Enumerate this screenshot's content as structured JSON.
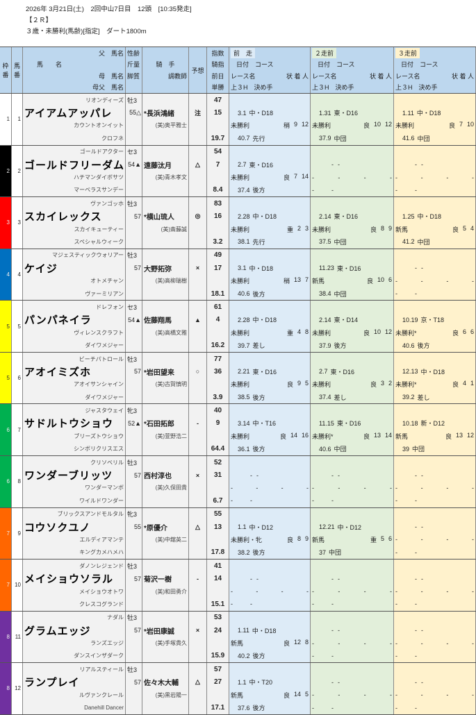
{
  "header": {
    "line1": "2026年 3月21日(土)　2回中山7日目　12頭　[10:35発走]",
    "race_no": "【２Ｒ】",
    "conditions": "３歳・未勝利(馬齢)[指定]　ダート1800m"
  },
  "columns": {
    "waku": [
      "枠",
      "番"
    ],
    "umaban": [
      "馬",
      "番"
    ],
    "sire": "父　馬名",
    "name": "馬　　名",
    "dam": "母　馬名",
    "damsire": "母父　馬名",
    "sexage": "性齢",
    "weight": "斤量",
    "style": "脚質",
    "jockey": "騎　手",
    "trainer": "調教師",
    "mark": "予想",
    "idx": "指数",
    "jidx": "騎指",
    "prev": "前日",
    "odds": "単勝",
    "races": [
      "前　走",
      "２走前",
      "３走前"
    ],
    "date_course": "日付　コース",
    "race_name": "レース名",
    "cond_fin_pop": "状 着 人",
    "l3f_style": "上３H　決め手"
  },
  "empty_mark": "-",
  "frame_colors": {
    "1": "#ffffff",
    "2": "#000000",
    "3": "#ff0000",
    "4": "#0070c0",
    "5": "#ffff00",
    "6": "#00b050",
    "7": "#ff6600",
    "8": "#7030a0"
  },
  "horses": [
    {
      "frame": "1",
      "num": "1",
      "sire": "リオンディーズ",
      "sexage": "牡3",
      "name": "アイアムアッパレ",
      "weight": "55△",
      "jockey": "*長浜鴻緒",
      "mark": "注",
      "idx": "47",
      "jidx": "15",
      "prev": "",
      "odds": "19.7",
      "dam": "カウントオンイット",
      "trainer": "(美)奥平雅士",
      "damsire": "クロフネ",
      "races": [
        {
          "date": "3.1",
          "course": "中・D18",
          "race": "未勝利",
          "cond": "稍",
          "fin": "9",
          "pop": "12",
          "l3f": "40.7",
          "style": "先行"
        },
        {
          "date": "1.31",
          "course": "東・D16",
          "race": "未勝利",
          "cond": "良",
          "fin": "10",
          "pop": "12",
          "l3f": "37.9",
          "style": "中団"
        },
        {
          "date": "1.11",
          "course": "中・D18",
          "race": "未勝利",
          "cond": "良",
          "fin": "7",
          "pop": "10",
          "l3f": "41.6",
          "style": "中団"
        }
      ]
    },
    {
      "frame": "2",
      "num": "2",
      "sire": "ゴールドアクター",
      "sexage": "セ3",
      "name": "ゴールドフリーダム",
      "weight": "54▲",
      "jockey": "遠藤汰月",
      "mark": "△",
      "idx": "54",
      "jidx": "7",
      "prev": "",
      "odds": "8.4",
      "dam": "ハチマンダイボサツ",
      "trainer": "(美)青木孝文",
      "damsire": "マーベラスサンデー",
      "races": [
        {
          "date": "2.7",
          "course": "東・D16",
          "race": "未勝利",
          "cond": "良",
          "fin": "7",
          "pop": "14",
          "l3f": "37.4",
          "style": "後方"
        },
        null,
        null
      ]
    },
    {
      "frame": "3",
      "num": "3",
      "sire": "ヴァンゴッホ",
      "sexage": "牡3",
      "name": "スカイレックス",
      "weight": "57",
      "jockey": "*横山琉人",
      "mark": "◎",
      "idx": "83",
      "jidx": "16",
      "prev": "",
      "odds": "3.2",
      "dam": "スカイキューティー",
      "trainer": "(美)斎藤誠",
      "damsire": "スペシャルウィーク",
      "races": [
        {
          "date": "2.28",
          "course": "中・D18",
          "race": "未勝利",
          "cond": "重",
          "fin": "2",
          "pop": "3",
          "l3f": "38.1",
          "style": "先行"
        },
        {
          "date": "2.14",
          "course": "東・D16",
          "race": "未勝利",
          "cond": "良",
          "fin": "8",
          "pop": "9",
          "l3f": "37.5",
          "style": "中団"
        },
        {
          "date": "1.25",
          "course": "中・D18",
          "race": "新馬",
          "cond": "良",
          "fin": "5",
          "pop": "4",
          "l3f": "41.2",
          "style": "中団"
        }
      ]
    },
    {
      "frame": "4",
      "num": "4",
      "sire": "マジェスティックウォリアー",
      "sexage": "牡3",
      "name": "ケイジ",
      "weight": "57",
      "jockey": "大野拓弥",
      "mark": "×",
      "idx": "49",
      "jidx": "17",
      "prev": "",
      "odds": "18.1",
      "dam": "オトメチャン",
      "trainer": "(美)高柳瑞樹",
      "damsire": "ヴァーミリアン",
      "races": [
        {
          "date": "3.1",
          "course": "中・D18",
          "race": "未勝利",
          "cond": "稍",
          "fin": "13",
          "pop": "7",
          "l3f": "40.6",
          "style": "後方"
        },
        {
          "date": "11.23",
          "course": "東・D16",
          "race": "新馬",
          "cond": "良",
          "fin": "10",
          "pop": "6",
          "l3f": "38.4",
          "style": "中団"
        },
        null
      ]
    },
    {
      "frame": "5",
      "num": "5",
      "sire": "ドレフォン",
      "sexage": "セ3",
      "name": "パンパネイラ",
      "weight": "54▲",
      "jockey": "佐藤翔馬",
      "mark": "▲",
      "idx": "61",
      "jidx": "4",
      "prev": "",
      "odds": "16.2",
      "dam": "ヴィレンスクラフト",
      "trainer": "(美)高橋文雅",
      "damsire": "ダイワメジャー",
      "races": [
        {
          "date": "2.28",
          "course": "中・D18",
          "race": "未勝利",
          "cond": "重",
          "fin": "4",
          "pop": "8",
          "l3f": "39.7",
          "style": "差し"
        },
        {
          "date": "2.14",
          "course": "東・D14",
          "race": "未勝利",
          "cond": "良",
          "fin": "10",
          "pop": "12",
          "l3f": "37.9",
          "style": "後方"
        },
        {
          "date": "10.19",
          "course": "京・T18",
          "race": "未勝利*",
          "cond": "良",
          "fin": "6",
          "pop": "6",
          "l3f": "40.6",
          "style": "後方"
        }
      ]
    },
    {
      "frame": "5",
      "num": "6",
      "sire": "ビーチパトロール",
      "sexage": "牡3",
      "name": "アオイミズホ",
      "weight": "57",
      "jockey": "*岩田望来",
      "mark": "○",
      "idx": "77",
      "jidx": "36",
      "prev": "",
      "odds": "3.9",
      "dam": "アオイサンシャイン",
      "trainer": "(美)古賀慎明",
      "damsire": "ダイワメジャー",
      "races": [
        {
          "date": "2.21",
          "course": "東・D16",
          "race": "未勝利",
          "cond": "良",
          "fin": "9",
          "pop": "5",
          "l3f": "38.5",
          "style": "後方"
        },
        {
          "date": "2.7",
          "course": "東・D16",
          "race": "未勝利",
          "cond": "良",
          "fin": "3",
          "pop": "2",
          "l3f": "37.4",
          "style": "差し"
        },
        {
          "date": "12.13",
          "course": "中・D18",
          "race": "未勝利*",
          "cond": "良",
          "fin": "4",
          "pop": "1",
          "l3f": "39.2",
          "style": "差し"
        }
      ]
    },
    {
      "frame": "6",
      "num": "7",
      "sire": "ジャスタウェイ",
      "sexage": "牝3",
      "name": "サドルトウショウ",
      "weight": "52▲",
      "jockey": "*石田拓郎",
      "mark": "-",
      "idx": "40",
      "jidx": "9",
      "prev": "",
      "odds": "64.4",
      "dam": "ブリーズトウショウ",
      "trainer": "(美)萱野浩二",
      "damsire": "シンボリクリスエス",
      "races": [
        {
          "date": "3.14",
          "course": "中・T16",
          "race": "未勝利",
          "cond": "良",
          "fin": "14",
          "pop": "16",
          "l3f": "36.1",
          "style": "後方"
        },
        {
          "date": "11.15",
          "course": "東・D16",
          "race": "未勝利*",
          "cond": "良",
          "fin": "13",
          "pop": "14",
          "l3f": "40.6",
          "style": "中団"
        },
        {
          "date": "10.18",
          "course": "新・D12",
          "race": "新馬",
          "cond": "良",
          "fin": "13",
          "pop": "12",
          "l3f": "39",
          "style": "中団"
        }
      ]
    },
    {
      "frame": "6",
      "num": "8",
      "sire": "クリソベリル",
      "sexage": "牡3",
      "name": "ワンダーブリッツ",
      "weight": "57",
      "jockey": "西村淳也",
      "mark": "×",
      "idx": "52",
      "jidx": "31",
      "prev": "",
      "odds": "6.7",
      "dam": "ワンダーマンボ",
      "trainer": "(美)久保田貴",
      "damsire": "ワイルドワンダー",
      "races": [
        null,
        null,
        null
      ]
    },
    {
      "frame": "7",
      "num": "9",
      "sire": "ブリックスアンドモルタル",
      "sexage": "牝3",
      "name": "コウソクユノ",
      "weight": "55",
      "jockey": "*原優介",
      "mark": "△",
      "idx": "55",
      "jidx": "13",
      "prev": "",
      "odds": "17.8",
      "dam": "エルディアマンテ",
      "trainer": "(美)中舘英二",
      "damsire": "キングカメハメハ",
      "races": [
        {
          "date": "1.1",
          "course": "中・D12",
          "race": "未勝利・牝",
          "cond": "良",
          "fin": "8",
          "pop": "9",
          "l3f": "38.2",
          "style": "後方"
        },
        {
          "date": "12.21",
          "course": "中・D12",
          "race": "新馬",
          "cond": "重",
          "fin": "5",
          "pop": "6",
          "l3f": "37",
          "style": "中団"
        },
        null
      ]
    },
    {
      "frame": "7",
      "num": "10",
      "sire": "ダノンレジェンド",
      "sexage": "牡3",
      "name": "メイショウソラル",
      "weight": "57",
      "jockey": "菊沢一樹",
      "mark": "-",
      "idx": "41",
      "jidx": "14",
      "prev": "",
      "odds": "15.1",
      "dam": "メイショウオトワ",
      "trainer": "(美)和田勇介",
      "damsire": "クレスコグランド",
      "races": [
        null,
        null,
        null
      ]
    },
    {
      "frame": "8",
      "num": "11",
      "sire": "ナダル",
      "sexage": "牡3",
      "name": "グラムエッジ",
      "weight": "57",
      "jockey": "*岩田康誠",
      "mark": "×",
      "idx": "53",
      "jidx": "24",
      "prev": "",
      "odds": "15.9",
      "dam": "ランズエッジ",
      "trainer": "(美)手塚貴久",
      "damsire": "ダンスインザダーク",
      "races": [
        {
          "date": "1.11",
          "course": "中・D18",
          "race": "新馬",
          "cond": "良",
          "fin": "12",
          "pop": "8",
          "l3f": "40.2",
          "style": "後方"
        },
        null,
        null
      ]
    },
    {
      "frame": "8",
      "num": "12",
      "sire": "リアルスティール",
      "sexage": "牡3",
      "name": "ランプレイ",
      "weight": "57",
      "jockey": "佐々木大輔",
      "mark": "△",
      "idx": "57",
      "jidx": "27",
      "prev": "",
      "odds": "17.1",
      "dam": "ルヴァンクレール",
      "trainer": "(美)黒岩陽一",
      "damsire": "Danehill Dancer",
      "races": [
        {
          "date": "1.1",
          "course": "中・T20",
          "race": "新馬",
          "cond": "良",
          "fin": "14",
          "pop": "5",
          "l3f": "37.6",
          "style": "後方"
        },
        null,
        null
      ]
    }
  ]
}
